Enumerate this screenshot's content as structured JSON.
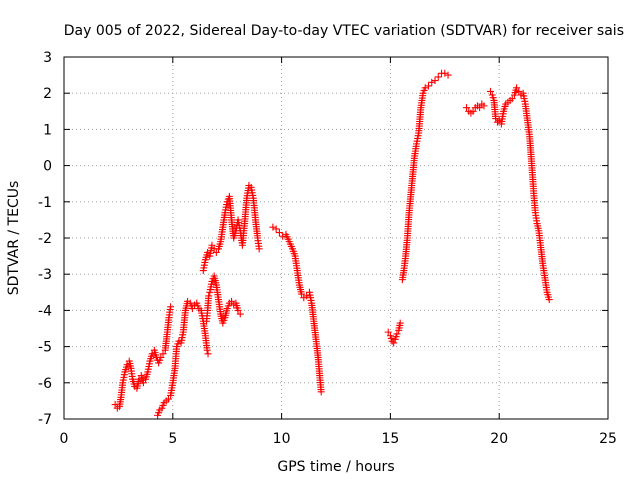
{
  "chart_data": {
    "type": "scatter",
    "title": "Day 005 of 2022, Sidereal Day-to-day VTEC variation (SDTVAR) for receiver sais",
    "xlabel": "GPS time / hours",
    "ylabel": "SDTVAR / TECUs",
    "xlim": [
      0,
      25
    ],
    "ylim": [
      -7,
      3
    ],
    "xticks": [
      "0",
      "5",
      "10",
      "15",
      "20",
      "25"
    ],
    "yticks": [
      "-7",
      "-6",
      "-5",
      "-4",
      "-3",
      "-2",
      "-1",
      "0",
      "1",
      "2",
      "3"
    ],
    "grid": true,
    "marker": "+",
    "color": "#ff0000",
    "series": [
      {
        "name": "SDTVAR",
        "segments": [
          [
            [
              2.35,
              -6.6
            ],
            [
              2.45,
              -6.7
            ],
            [
              2.55,
              -6.65
            ],
            [
              2.62,
              -6.4
            ],
            [
              2.7,
              -6.0
            ],
            [
              2.8,
              -5.7
            ],
            [
              2.9,
              -5.5
            ],
            [
              3.0,
              -5.4
            ],
            [
              3.08,
              -5.6
            ],
            [
              3.15,
              -5.9
            ],
            [
              3.25,
              -6.1
            ],
            [
              3.35,
              -6.15
            ],
            [
              3.45,
              -5.9
            ],
            [
              3.55,
              -5.8
            ],
            [
              3.65,
              -6.0
            ],
            [
              3.75,
              -5.9
            ],
            [
              3.85,
              -5.7
            ],
            [
              3.95,
              -5.4
            ],
            [
              4.05,
              -5.2
            ],
            [
              4.15,
              -5.1
            ],
            [
              4.25,
              -5.3
            ],
            [
              4.35,
              -5.45
            ],
            [
              4.45,
              -5.3
            ],
            [
              4.55,
              -5.2
            ],
            [
              4.65,
              -5.1
            ],
            [
              4.75,
              -4.6
            ],
            [
              4.82,
              -4.2
            ],
            [
              4.9,
              -3.9
            ]
          ],
          [
            [
              4.3,
              -6.9
            ],
            [
              4.4,
              -6.75
            ],
            [
              4.5,
              -6.7
            ],
            [
              4.6,
              -6.55
            ],
            [
              4.7,
              -6.5
            ],
            [
              4.8,
              -6.45
            ],
            [
              4.9,
              -6.35
            ],
            [
              5.0,
              -6.0
            ],
            [
              5.1,
              -5.6
            ],
            [
              5.18,
              -5.0
            ],
            [
              5.28,
              -4.85
            ],
            [
              5.38,
              -4.9
            ],
            [
              5.48,
              -4.6
            ],
            [
              5.58,
              -4.0
            ],
            [
              5.68,
              -3.75
            ],
            [
              5.8,
              -3.8
            ],
            [
              5.9,
              -3.95
            ],
            [
              6.0,
              -3.85
            ],
            [
              6.1,
              -3.8
            ],
            [
              6.2,
              -3.95
            ],
            [
              6.3,
              -4.0
            ],
            [
              6.4,
              -4.3
            ],
            [
              6.5,
              -4.7
            ],
            [
              6.58,
              -5.1
            ],
            [
              6.62,
              -5.2
            ]
          ],
          [
            [
              6.4,
              -2.9
            ],
            [
              6.5,
              -2.6
            ],
            [
              6.6,
              -2.4
            ],
            [
              6.7,
              -2.5
            ],
            [
              6.8,
              -2.2
            ],
            [
              6.9,
              -2.3
            ],
            [
              7.0,
              -2.4
            ],
            [
              7.1,
              -2.3
            ],
            [
              7.2,
              -2.1
            ],
            [
              7.3,
              -1.7
            ],
            [
              7.4,
              -1.3
            ],
            [
              7.5,
              -1.0
            ],
            [
              7.6,
              -0.85
            ],
            [
              7.7,
              -1.5
            ],
            [
              7.8,
              -2.0
            ],
            [
              7.9,
              -1.8
            ],
            [
              8.0,
              -1.5
            ],
            [
              8.1,
              -1.8
            ],
            [
              8.2,
              -2.2
            ],
            [
              8.3,
              -1.6
            ],
            [
              8.4,
              -0.9
            ],
            [
              8.5,
              -0.55
            ],
            [
              8.6,
              -0.6
            ],
            [
              8.7,
              -0.9
            ],
            [
              8.8,
              -1.5
            ],
            [
              8.9,
              -2.0
            ],
            [
              8.97,
              -2.3
            ]
          ],
          [
            [
              6.55,
              -4.3
            ],
            [
              6.6,
              -4.0
            ],
            [
              6.65,
              -3.6
            ],
            [
              6.7,
              -3.5
            ],
            [
              6.8,
              -3.2
            ],
            [
              6.9,
              -3.05
            ],
            [
              7.0,
              -3.3
            ],
            [
              7.1,
              -3.7
            ],
            [
              7.2,
              -4.1
            ],
            [
              7.3,
              -4.35
            ],
            [
              7.4,
              -4.2
            ],
            [
              7.5,
              -3.95
            ],
            [
              7.6,
              -3.8
            ],
            [
              7.7,
              -3.75
            ],
            [
              7.8,
              -3.85
            ],
            [
              7.9,
              -3.8
            ],
            [
              8.0,
              -4.0
            ],
            [
              8.1,
              -4.1
            ]
          ],
          [
            [
              9.6,
              -1.7
            ],
            [
              9.75,
              -1.75
            ],
            [
              9.9,
              -1.85
            ],
            [
              10.05,
              -1.95
            ],
            [
              10.2,
              -1.9
            ],
            [
              10.35,
              -2.1
            ],
            [
              10.5,
              -2.3
            ],
            [
              10.62,
              -2.5
            ],
            [
              10.72,
              -2.9
            ],
            [
              10.82,
              -3.3
            ],
            [
              10.92,
              -3.55
            ],
            [
              11.02,
              -3.65
            ],
            [
              11.15,
              -3.6
            ],
            [
              11.28,
              -3.5
            ],
            [
              11.38,
              -3.8
            ],
            [
              11.48,
              -4.3
            ],
            [
              11.58,
              -4.8
            ],
            [
              11.68,
              -5.3
            ],
            [
              11.75,
              -5.8
            ],
            [
              11.82,
              -6.25
            ]
          ],
          [
            [
              14.9,
              -4.6
            ],
            [
              15.0,
              -4.7
            ],
            [
              15.08,
              -4.85
            ],
            [
              15.15,
              -4.9
            ],
            [
              15.22,
              -4.8
            ],
            [
              15.3,
              -4.65
            ],
            [
              15.38,
              -4.55
            ],
            [
              15.45,
              -4.35
            ]
          ],
          [
            [
              15.55,
              -3.15
            ],
            [
              15.62,
              -2.9
            ],
            [
              15.7,
              -2.5
            ],
            [
              15.78,
              -2.0
            ],
            [
              15.86,
              -1.3
            ],
            [
              15.94,
              -0.8
            ],
            [
              16.02,
              -0.3
            ],
            [
              16.1,
              0.2
            ],
            [
              16.2,
              0.6
            ],
            [
              16.3,
              0.9
            ],
            [
              16.4,
              1.6
            ],
            [
              16.5,
              2.0
            ],
            [
              16.6,
              2.15
            ],
            [
              16.75,
              2.2
            ],
            [
              16.9,
              2.3
            ],
            [
              17.05,
              2.35
            ],
            [
              17.2,
              2.45
            ],
            [
              17.35,
              2.55
            ],
            [
              17.5,
              2.55
            ],
            [
              17.65,
              2.5
            ]
          ],
          [
            [
              18.5,
              1.6
            ],
            [
              18.6,
              1.5
            ],
            [
              18.7,
              1.45
            ],
            [
              18.8,
              1.5
            ],
            [
              18.9,
              1.6
            ],
            [
              19.0,
              1.65
            ],
            [
              19.1,
              1.6
            ],
            [
              19.2,
              1.7
            ],
            [
              19.3,
              1.65
            ]
          ],
          [
            [
              19.6,
              2.05
            ],
            [
              19.68,
              1.95
            ],
            [
              19.76,
              1.8
            ],
            [
              19.84,
              1.3
            ],
            [
              19.92,
              1.2
            ],
            [
              20.0,
              1.25
            ],
            [
              20.1,
              1.15
            ],
            [
              20.2,
              1.5
            ],
            [
              20.3,
              1.7
            ],
            [
              20.4,
              1.75
            ],
            [
              20.5,
              1.8
            ],
            [
              20.6,
              1.85
            ],
            [
              20.7,
              1.95
            ],
            [
              20.8,
              2.15
            ],
            [
              20.9,
              2.05
            ],
            [
              21.0,
              1.95
            ],
            [
              21.1,
              2.0
            ],
            [
              21.2,
              1.7
            ],
            [
              21.3,
              1.25
            ],
            [
              21.4,
              0.8
            ],
            [
              21.5,
              0.0
            ],
            [
              21.58,
              -0.7
            ],
            [
              21.66,
              -1.3
            ],
            [
              21.74,
              -1.6
            ],
            [
              21.82,
              -1.8
            ],
            [
              21.9,
              -2.2
            ],
            [
              22.0,
              -2.7
            ],
            [
              22.1,
              -3.1
            ],
            [
              22.2,
              -3.5
            ],
            [
              22.3,
              -3.7
            ]
          ]
        ]
      }
    ]
  }
}
